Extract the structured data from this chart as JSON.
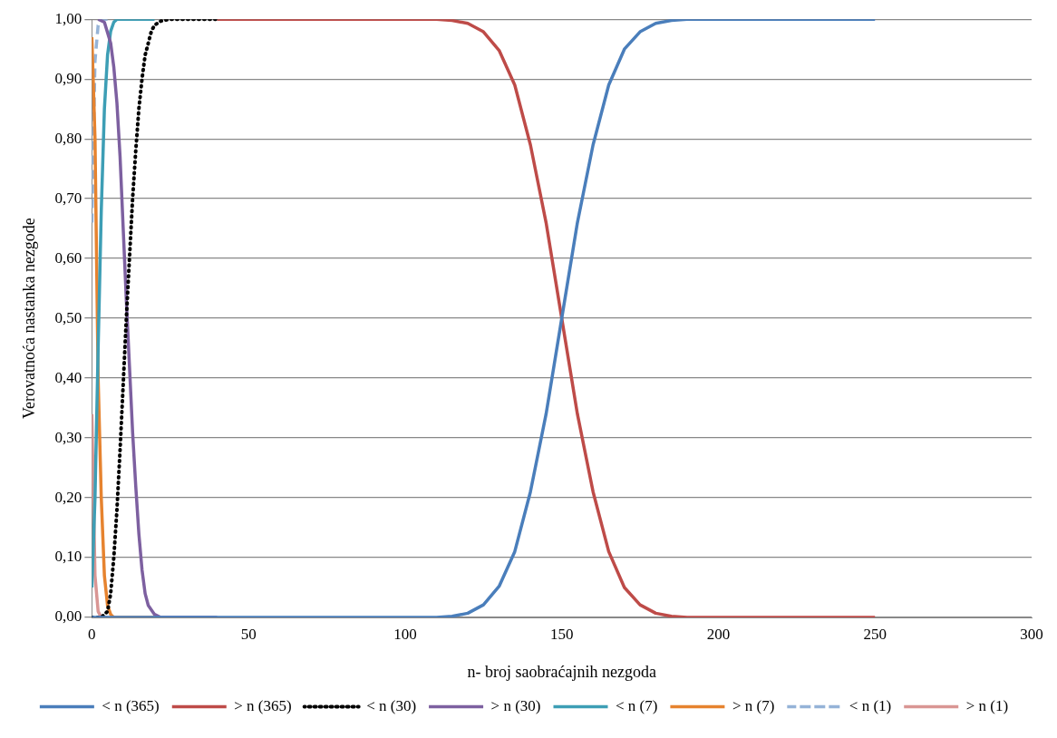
{
  "chart_data": {
    "type": "line",
    "xlabel": "n- broj saobraćajnih nezgoda",
    "ylabel": "Verovatnoća nastanka nezgode",
    "xlim": [
      0,
      300
    ],
    "xticks": [
      0,
      50,
      100,
      150,
      200,
      250,
      300
    ],
    "ylim": [
      0,
      1
    ],
    "yticks": [
      {
        "value": 0,
        "label": "0,00"
      },
      {
        "value": 0.1,
        "label": "0,10"
      },
      {
        "value": 0.2,
        "label": "0,20"
      },
      {
        "value": 0.3,
        "label": "0,30"
      },
      {
        "value": 0.4,
        "label": "0,40"
      },
      {
        "value": 0.5,
        "label": "0,50"
      },
      {
        "value": 0.6,
        "label": "0,60"
      },
      {
        "value": 0.7,
        "label": "0,70"
      },
      {
        "value": 0.8,
        "label": "0,80"
      },
      {
        "value": 0.9,
        "label": "0,90"
      },
      {
        "value": 1,
        "label": "1,00"
      }
    ],
    "grid": "y",
    "legend": "bottom",
    "marker": "none",
    "series": [
      {
        "name": "< n (365)",
        "color": "#4a7ebb",
        "line_style": "solid",
        "x": [
          0,
          110,
          115,
          120,
          125,
          130,
          135,
          140,
          145,
          150,
          155,
          160,
          165,
          170,
          175,
          180,
          185,
          190,
          250
        ],
        "values": [
          0,
          0,
          0.002,
          0.007,
          0.021,
          0.052,
          0.11,
          0.21,
          0.34,
          0.5,
          0.66,
          0.79,
          0.89,
          0.95,
          0.979,
          0.993,
          0.998,
          1,
          1
        ]
      },
      {
        "name": "> n (365)",
        "color": "#be4b48",
        "line_style": "solid",
        "x": [
          40,
          110,
          115,
          120,
          125,
          130,
          135,
          140,
          145,
          150,
          155,
          160,
          165,
          170,
          175,
          180,
          185,
          190,
          250
        ],
        "values": [
          1,
          1,
          0.998,
          0.993,
          0.979,
          0.948,
          0.89,
          0.79,
          0.66,
          0.5,
          0.34,
          0.21,
          0.11,
          0.05,
          0.021,
          0.007,
          0.002,
          0,
          0
        ]
      },
      {
        "name": "< n (30)",
        "color": "#000000",
        "line_style": "dotted",
        "x": [
          0,
          3,
          5,
          6,
          7,
          8,
          9,
          10,
          11,
          12,
          13,
          14,
          15,
          16,
          17,
          18,
          19,
          20,
          22,
          25,
          40
        ],
        "values": [
          0,
          0,
          0.01,
          0.04,
          0.1,
          0.18,
          0.28,
          0.39,
          0.5,
          0.6,
          0.7,
          0.78,
          0.85,
          0.9,
          0.94,
          0.96,
          0.98,
          0.99,
          0.997,
          1,
          1
        ]
      },
      {
        "name": "> n (30)",
        "color": "#7d60a0",
        "line_style": "solid",
        "x": [
          2,
          4,
          6,
          7,
          8,
          9,
          10,
          11,
          12,
          13,
          14,
          15,
          16,
          17,
          18,
          20,
          22,
          40
        ],
        "values": [
          1,
          0.995,
          0.96,
          0.92,
          0.86,
          0.77,
          0.65,
          0.53,
          0.42,
          0.31,
          0.22,
          0.14,
          0.08,
          0.04,
          0.02,
          0.005,
          0,
          0
        ]
      },
      {
        "name": "< n (7)",
        "color": "#3d9eb5",
        "line_style": "solid",
        "x": [
          0,
          1,
          2,
          3,
          4,
          5,
          6,
          7,
          8,
          20
        ],
        "values": [
          0.05,
          0.2,
          0.45,
          0.68,
          0.85,
          0.94,
          0.98,
          0.995,
          1,
          1
        ]
      },
      {
        "name": "> n (7)",
        "color": "#e6832f",
        "line_style": "solid",
        "x": [
          0,
          1,
          2,
          3,
          4,
          5,
          6,
          7,
          20
        ],
        "values": [
          0.97,
          0.8,
          0.4,
          0.2,
          0.07,
          0.02,
          0.005,
          0,
          0
        ]
      },
      {
        "name": "< n (1)",
        "color": "#95b3d7",
        "line_style": "dashed",
        "x": [
          0,
          1,
          2,
          3,
          5
        ],
        "values": [
          0.66,
          0.93,
          0.99,
          1,
          1
        ]
      },
      {
        "name": "> n (1)",
        "color": "#d99694",
        "line_style": "solid",
        "x": [
          0,
          1,
          2,
          3,
          5
        ],
        "values": [
          0.34,
          0.07,
          0.01,
          0,
          0
        ]
      }
    ]
  }
}
